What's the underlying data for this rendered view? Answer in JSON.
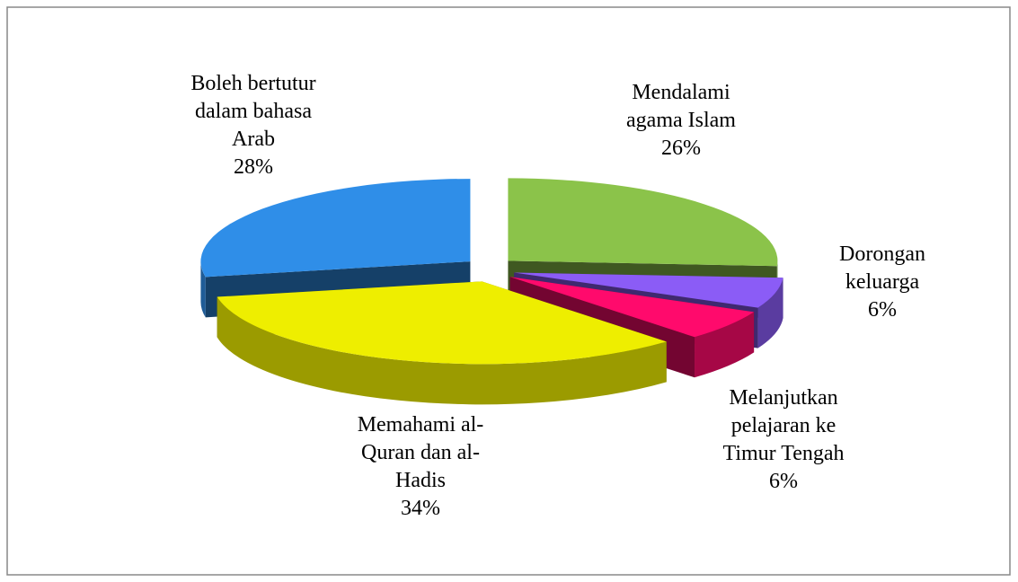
{
  "chart_data": {
    "type": "pie",
    "categories": [
      "Mendalami\nagama Islam",
      "Dorongan\nkeluarga",
      "Melanjutkan\npelajaran ke\nTimur Tengah",
      "Memahami al-\nQuran dan al-\nHadis",
      "Boleh bertutur\ndalam bahasa\nArab"
    ],
    "values": [
      26,
      6,
      6,
      34,
      28
    ],
    "value_labels": [
      "26%",
      "6%",
      "6%",
      "34%",
      "28%"
    ],
    "colors": [
      "#8bc34a",
      "#8b5cf6",
      "#ff0a6c",
      "#eeee00",
      "#2f8ee8"
    ]
  }
}
